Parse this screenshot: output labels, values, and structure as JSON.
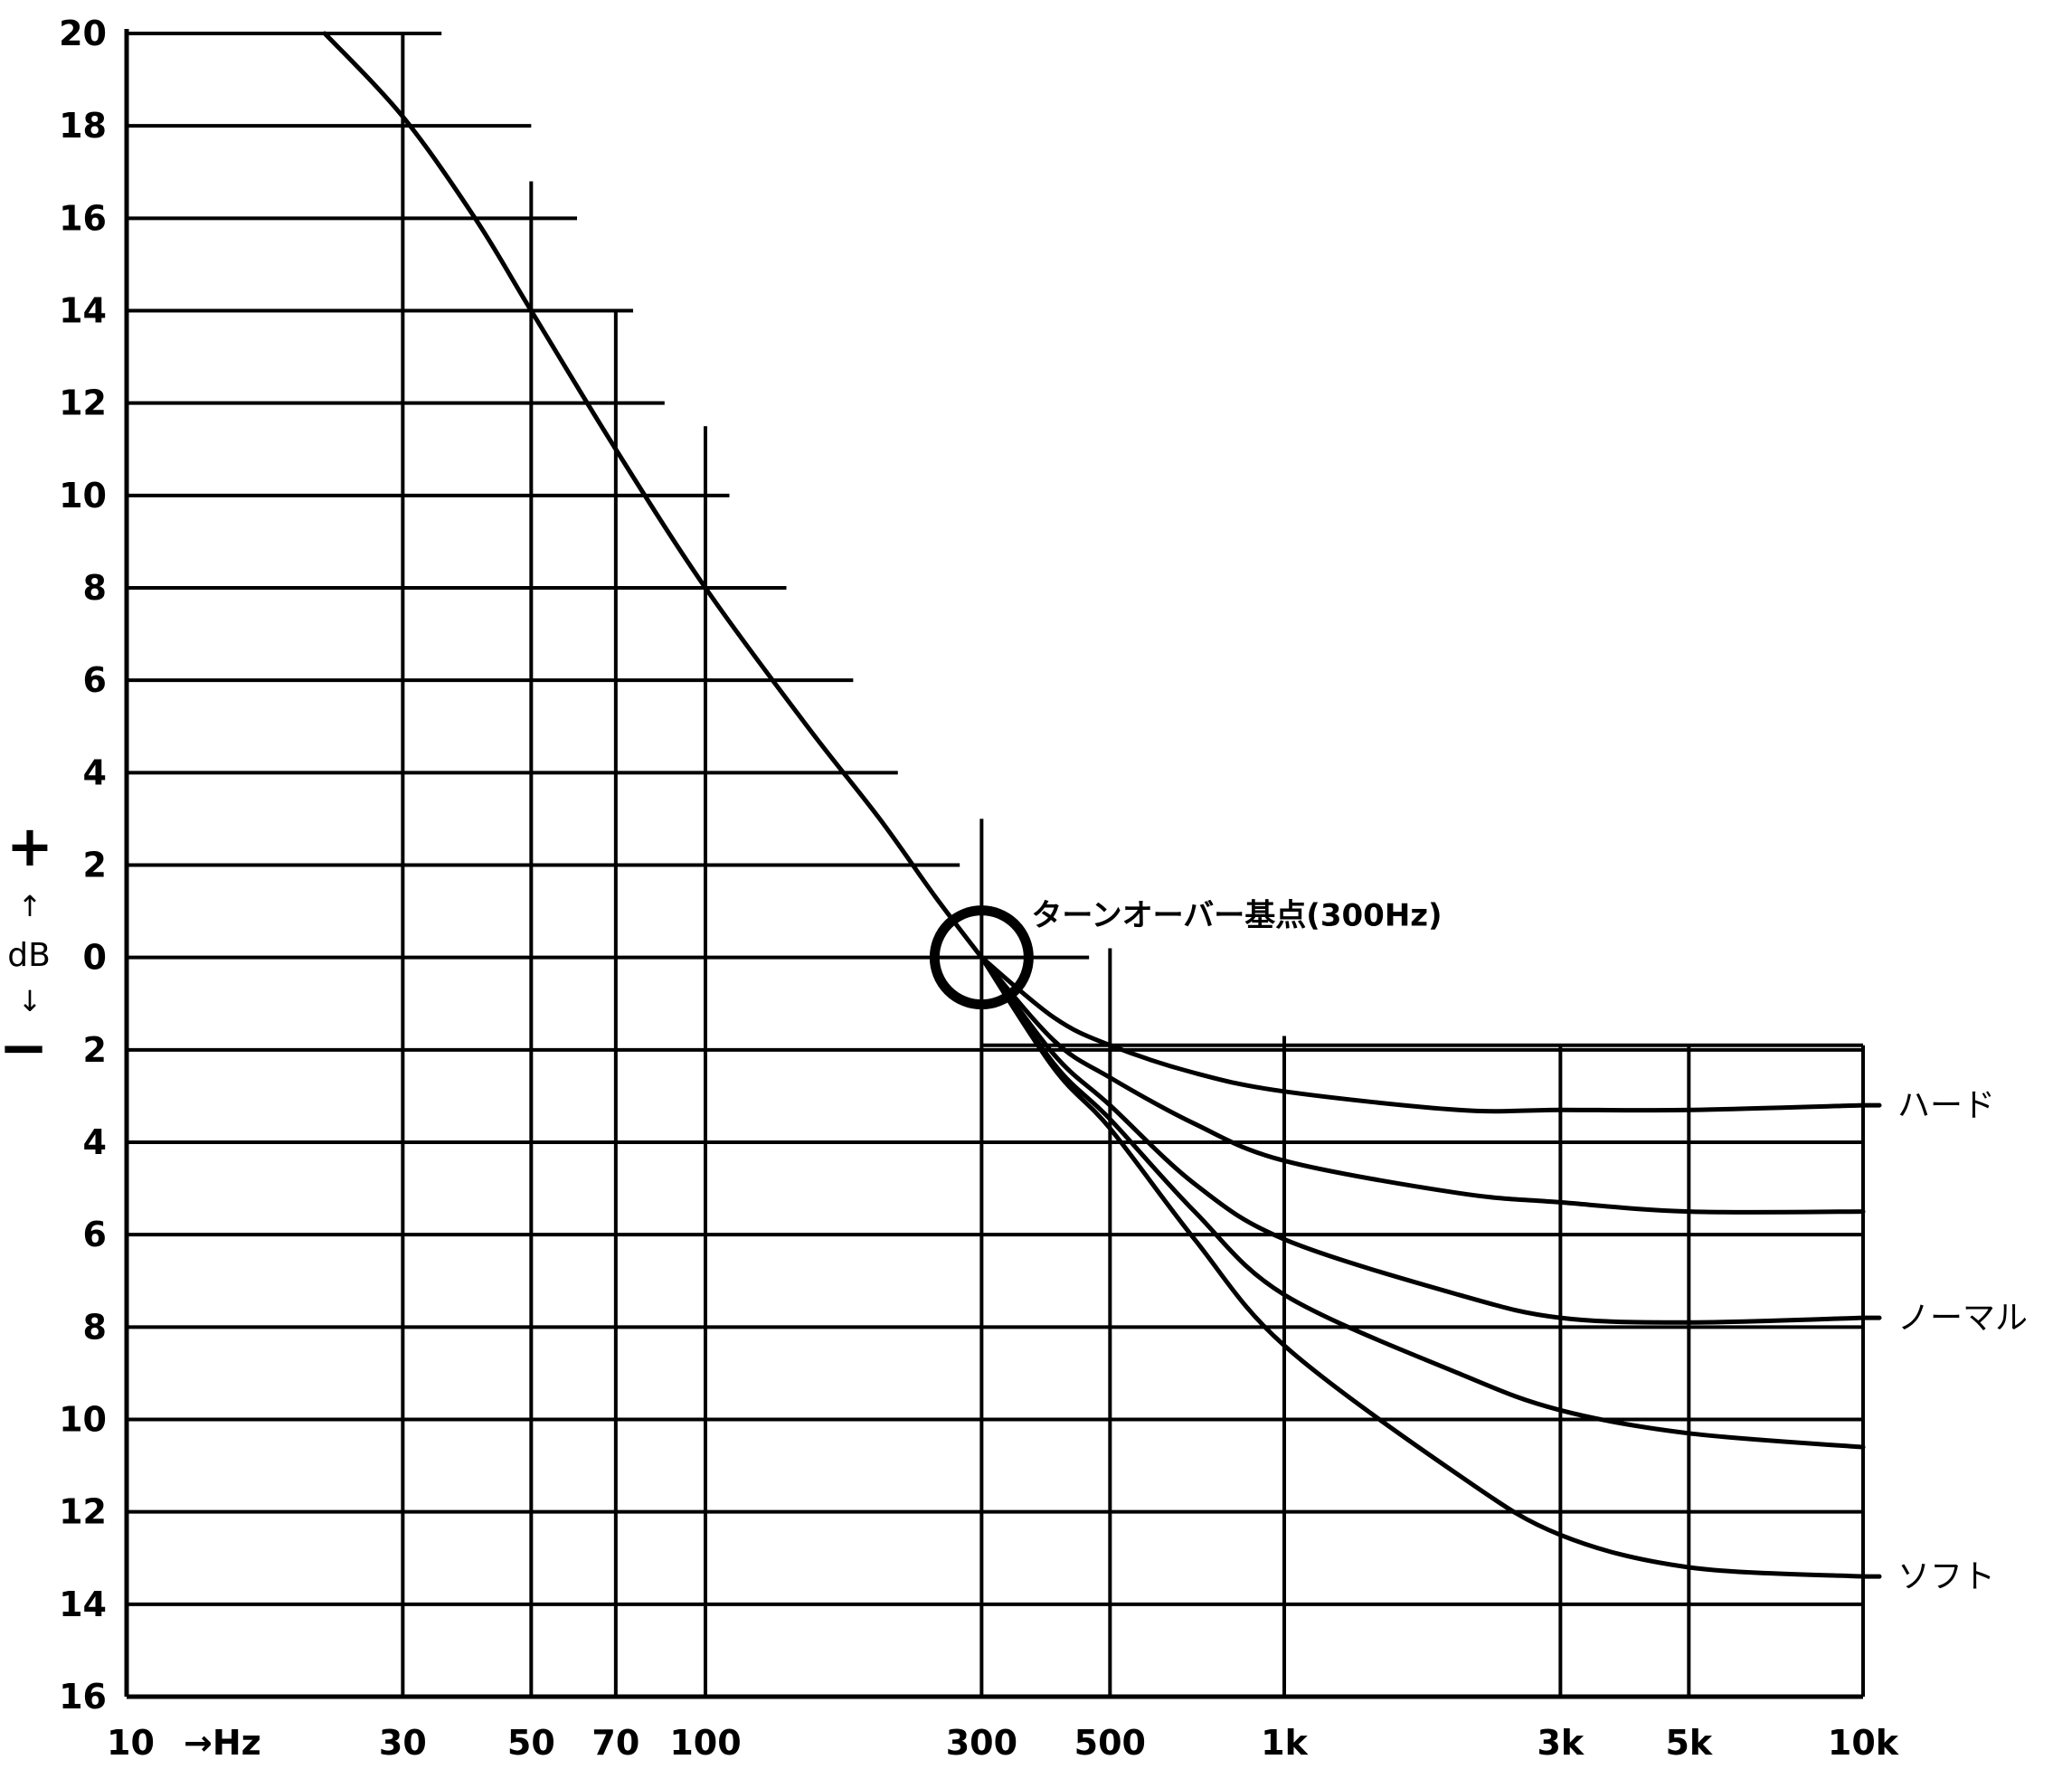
{
  "chart_data": {
    "type": "line",
    "x_scale": "log",
    "x_ticks": [
      10,
      30,
      50,
      70,
      100,
      300,
      500,
      1000,
      3000,
      5000,
      10000
    ],
    "x_tick_labels": [
      "10",
      "30",
      "50",
      "70",
      "100",
      "300",
      "500",
      "1k",
      "3k",
      "5k",
      "10k"
    ],
    "x_unit_label": "→Hz",
    "y_ticks": [
      20,
      18,
      16,
      14,
      12,
      10,
      8,
      6,
      4,
      2,
      0,
      -2,
      -4,
      -6,
      -8,
      -10,
      -12,
      -14,
      -16
    ],
    "y_tick_labels": [
      "20",
      "18",
      "16",
      "14",
      "12",
      "10",
      "8",
      "6",
      "4",
      "2",
      "0",
      "2",
      "4",
      "6",
      "8",
      "10",
      "12",
      "14",
      "16"
    ],
    "xlim": [
      10,
      10000
    ],
    "ylim": [
      -16,
      20
    ],
    "ylabel": "dB",
    "y_plus_sign": "+",
    "y_minus_sign": "−",
    "arrow_up": "↑",
    "arrow_down": "↓",
    "annotation": {
      "text": "ターンオーバー基点(300Hz)",
      "x": 300,
      "y": 0
    },
    "common_curve": [
      [
        22,
        20
      ],
      [
        30,
        18.2
      ],
      [
        40,
        16
      ],
      [
        50,
        14
      ],
      [
        70,
        11
      ],
      [
        100,
        8
      ],
      [
        150,
        5
      ],
      [
        200,
        3
      ],
      [
        250,
        1.3
      ],
      [
        300,
        0
      ]
    ],
    "series": [
      {
        "name": "ハード",
        "points": [
          [
            300,
            0
          ],
          [
            400,
            -1.3
          ],
          [
            500,
            -1.9
          ],
          [
            700,
            -2.5
          ],
          [
            1000,
            -2.9
          ],
          [
            2000,
            -3.3
          ],
          [
            3000,
            -3.3
          ],
          [
            5000,
            -3.3
          ],
          [
            10000,
            -3.2
          ]
        ]
      },
      {
        "values_note": "",
        "points": [
          [
            300,
            0
          ],
          [
            400,
            -1.8
          ],
          [
            500,
            -2.6
          ],
          [
            700,
            -3.6
          ],
          [
            1000,
            -4.4
          ],
          [
            2000,
            -5.1
          ],
          [
            3000,
            -5.3
          ],
          [
            5000,
            -5.5
          ],
          [
            10000,
            -5.5
          ]
        ]
      },
      {
        "name": "ノーマル",
        "points": [
          [
            300,
            0
          ],
          [
            400,
            -2.1
          ],
          [
            500,
            -3.2
          ],
          [
            700,
            -4.9
          ],
          [
            1000,
            -6.1
          ],
          [
            2000,
            -7.3
          ],
          [
            3000,
            -7.8
          ],
          [
            5000,
            -7.9
          ],
          [
            10000,
            -7.8
          ]
        ]
      },
      {
        "points": [
          [
            300,
            0
          ],
          [
            400,
            -2.3
          ],
          [
            500,
            -3.5
          ],
          [
            700,
            -5.5
          ],
          [
            1000,
            -7.3
          ],
          [
            2000,
            -9.0
          ],
          [
            3000,
            -9.8
          ],
          [
            5000,
            -10.3
          ],
          [
            10000,
            -10.6
          ]
        ]
      },
      {
        "name": "ソフト",
        "points": [
          [
            300,
            0
          ],
          [
            400,
            -2.4
          ],
          [
            500,
            -3.7
          ],
          [
            700,
            -6.1
          ],
          [
            1000,
            -8.4
          ],
          [
            2000,
            -11.2
          ],
          [
            3000,
            -12.5
          ],
          [
            5000,
            -13.2
          ],
          [
            10000,
            -13.4
          ]
        ]
      }
    ]
  }
}
